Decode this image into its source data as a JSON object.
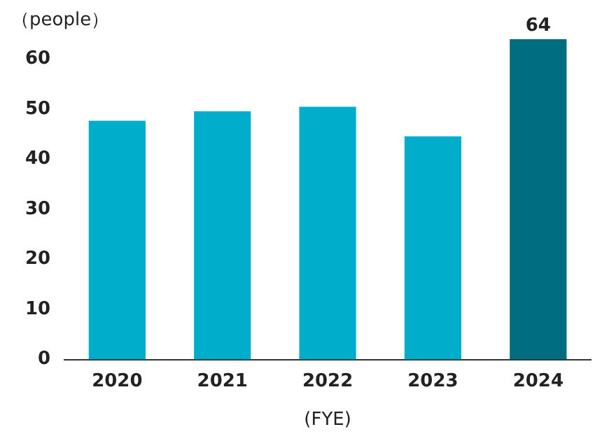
{
  "chart_data": {
    "type": "bar",
    "ylabel": "（people）",
    "xlabel": "(FYE)",
    "categories": [
      "2020",
      "2021",
      "2022",
      "2023",
      "2024"
    ],
    "values": [
      47.7,
      49.6,
      50.5,
      44.6,
      64
    ],
    "colors": [
      "#00aecb",
      "#00aecb",
      "#00aecb",
      "#00aecb",
      "#006e80"
    ],
    "value_labels": [
      null,
      null,
      null,
      null,
      "64"
    ],
    "ylim": [
      0,
      64
    ],
    "yticks": [
      0,
      10,
      20,
      30,
      40,
      50,
      60
    ],
    "grid": false,
    "legend": false
  }
}
